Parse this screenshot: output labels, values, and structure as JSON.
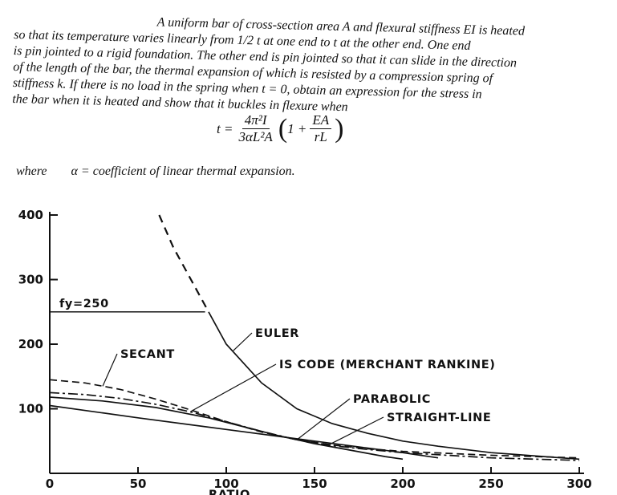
{
  "problem": {
    "lines": [
      "A uniform bar of cross-section area A and flexural stiffness EI is heated",
      "so that its temperature varies linearly from 1/2 t at one end to t at the other end. One end",
      "is pin jointed to a rigid foundation. The other end is pin jointed so that it can slide in the direction",
      "of the length of the bar, the thermal expansion of which is resisted by a compression spring of",
      "stiffness k. If there is no load in the spring when t = 0, obtain an expression for the stress in",
      "the bar when it is heated and show that it buckles in flexure when"
    ],
    "formula": {
      "lhs": "t =",
      "num1": "4π²I",
      "den1": "3αL²A",
      "inner": "1 +",
      "num2": "EA",
      "den2": "rL"
    },
    "where_label": "where",
    "where_text": "α =  coefficient of linear thermal expansion."
  },
  "chart_data": {
    "type": "line",
    "xlim": [
      0,
      300
    ],
    "ylim": [
      0,
      400
    ],
    "x_ticks": [
      "0",
      "50",
      "100",
      "150",
      "200",
      "250",
      "300"
    ],
    "y_ticks": [
      "100",
      "200",
      "300",
      "400"
    ],
    "x_axis_label_partial": "RATIO",
    "annotation": "fy=250",
    "series": [
      {
        "name": "EULER",
        "style": "solid-dashed",
        "points": [
          [
            62,
            400
          ],
          [
            70,
            350
          ],
          [
            80,
            300
          ],
          [
            90,
            250
          ],
          [
            100,
            200
          ],
          [
            120,
            140
          ],
          [
            140,
            100
          ],
          [
            160,
            77
          ],
          [
            180,
            62
          ],
          [
            200,
            50
          ],
          [
            220,
            42
          ],
          [
            250,
            32
          ],
          [
            280,
            26
          ],
          [
            300,
            22
          ]
        ]
      },
      {
        "name": "SECANT",
        "style": "dashed",
        "points": [
          [
            0,
            145
          ],
          [
            20,
            140
          ],
          [
            40,
            130
          ],
          [
            60,
            115
          ],
          [
            80,
            98
          ],
          [
            100,
            80
          ],
          [
            120,
            64
          ],
          [
            140,
            52
          ],
          [
            160,
            44
          ],
          [
            180,
            38
          ],
          [
            200,
            34
          ],
          [
            250,
            28
          ],
          [
            300,
            24
          ]
        ]
      },
      {
        "name": "IS CODE (MERCHANT RANKINE)",
        "style": "dash-dot",
        "points": [
          [
            0,
            125
          ],
          [
            20,
            122
          ],
          [
            40,
            116
          ],
          [
            60,
            107
          ],
          [
            80,
            95
          ],
          [
            100,
            80
          ],
          [
            120,
            65
          ],
          [
            140,
            52
          ],
          [
            160,
            43
          ],
          [
            180,
            37
          ],
          [
            200,
            32
          ],
          [
            250,
            24
          ],
          [
            300,
            20
          ]
        ]
      },
      {
        "name": "PARABOLIC",
        "style": "solid",
        "points": [
          [
            0,
            118
          ],
          [
            30,
            112
          ],
          [
            60,
            102
          ],
          [
            90,
            86
          ],
          [
            110,
            72
          ],
          [
            130,
            58
          ],
          [
            150,
            46
          ],
          [
            170,
            36
          ],
          [
            190,
            26
          ],
          [
            200,
            22
          ]
        ]
      },
      {
        "name": "STRAIGHT-LINE",
        "style": "solid",
        "points": [
          [
            0,
            105
          ],
          [
            50,
            86
          ],
          [
            100,
            68
          ],
          [
            150,
            50
          ],
          [
            200,
            32
          ],
          [
            220,
            24
          ]
        ]
      }
    ],
    "yield_line": {
      "value": 250,
      "x_end": 88
    }
  }
}
